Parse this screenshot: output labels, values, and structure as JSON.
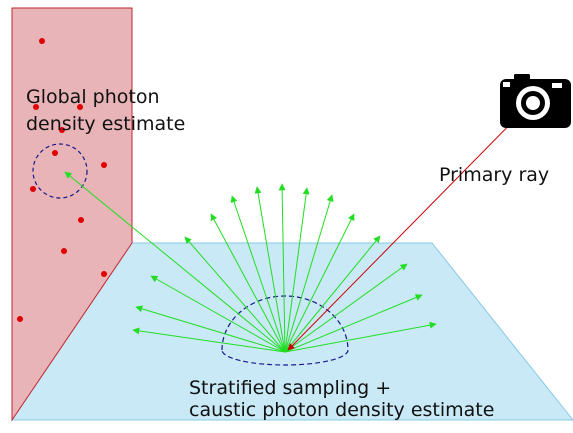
{
  "labels": {
    "global_line1": "Global photon",
    "global_line2": "density estimate",
    "primary_ray": "Primary ray",
    "bottom_line1": "Stratified sampling +",
    "bottom_line2": "caustic photon density estimate"
  },
  "icons": {
    "camera": "camera-icon"
  },
  "colors": {
    "wall_fill": "#e8b4b8",
    "wall_stroke": "#c0262c",
    "floor_fill": "#c9e9f6",
    "floor_stroke": "#88c8e6",
    "photon_dot": "#e00000",
    "sample_ray": "#22dd22",
    "primary_ray": "#cc0000",
    "dashed_circle": "#1a1a8c"
  }
}
